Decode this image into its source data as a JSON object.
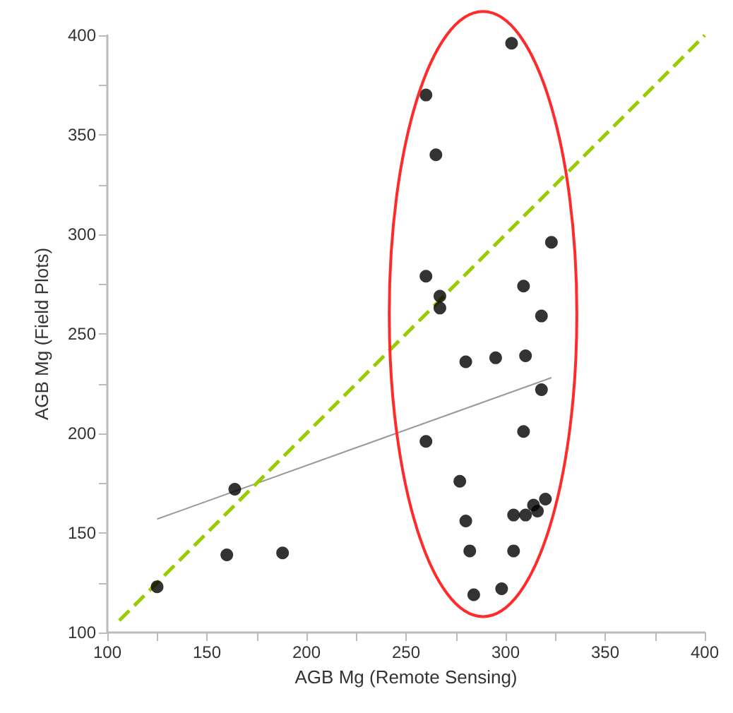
{
  "chart_data": {
    "type": "scatter",
    "xlabel": "AGB Mg (Remote Sensing)",
    "ylabel": "AGB Mg (Field Plots)",
    "xlim": [
      100,
      400
    ],
    "xticks": [
      100,
      150,
      200,
      250,
      300,
      350,
      400
    ],
    "ylim": [
      100,
      400
    ],
    "yticks": [
      100,
      150,
      200,
      250,
      300,
      350,
      400
    ],
    "marker": "circle",
    "series": [
      {
        "color": "#000000",
        "x": [
          303,
          260,
          265,
          260,
          267,
          267,
          323,
          309,
          318,
          280,
          295,
          310,
          318,
          260,
          309,
          277,
          320,
          314,
          316,
          304,
          310,
          280,
          282,
          304,
          298,
          284,
          164,
          160,
          188,
          125
        ],
        "values": [
          396,
          370,
          340,
          279,
          269,
          263,
          296,
          274,
          259,
          236,
          238,
          239,
          222,
          196,
          201,
          176,
          167,
          164,
          161,
          159,
          159,
          156,
          141,
          141,
          122,
          119,
          172,
          139,
          140,
          123
        ]
      },
      {
        "type": "line",
        "color": "#999999",
        "line_style": "solid",
        "marker": "none",
        "x": [
          125,
          323
        ],
        "values": [
          157,
          228
        ]
      },
      {
        "type": "line",
        "color": "#99cc00",
        "line_style": "dashed",
        "marker": "none",
        "x": [
          106,
          400
        ],
        "values": [
          106,
          400
        ]
      }
    ]
  }
}
